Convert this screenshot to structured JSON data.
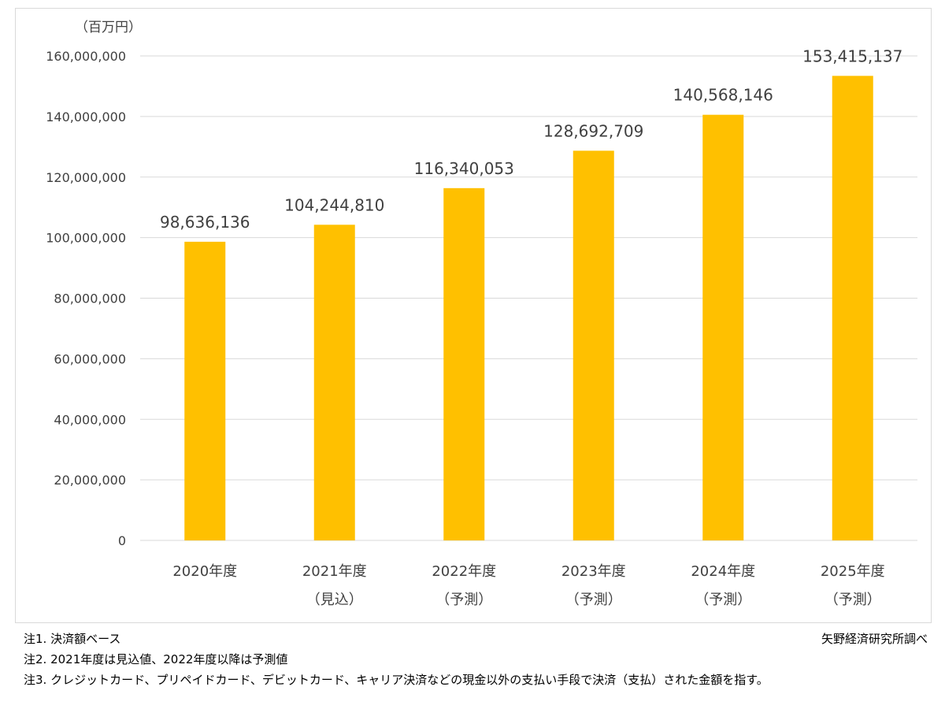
{
  "chart_data": {
    "type": "bar",
    "unit_label": "（百万円）",
    "categories": [
      {
        "line1": "2020年度",
        "line2": ""
      },
      {
        "line1": "2021年度",
        "line2": "（見込）"
      },
      {
        "line1": "2022年度",
        "line2": "（予測）"
      },
      {
        "line1": "2023年度",
        "line2": "（予測）"
      },
      {
        "line1": "2024年度",
        "line2": "（予測）"
      },
      {
        "line1": "2025年度",
        "line2": "（予測）"
      }
    ],
    "values": [
      98636136,
      104244810,
      116340053,
      128692709,
      140568146,
      153415137
    ],
    "data_labels": [
      "98,636,136",
      "104,244,810",
      "116,340,053",
      "128,692,709",
      "140,568,146",
      "153,415,137"
    ],
    "ylim": [
      0,
      160000000
    ],
    "yticks": [
      0,
      20000000,
      40000000,
      60000000,
      80000000,
      100000000,
      120000000,
      140000000,
      160000000
    ],
    "ytick_labels": [
      "0",
      "20,000,000",
      "40,000,000",
      "60,000,000",
      "80,000,000",
      "100,000,000",
      "120,000,000",
      "140,000,000",
      "160,000,000"
    ],
    "grid": true,
    "bar_color": "#FFC000",
    "gridline_color": "#d9d9d9",
    "text_color": "#404040"
  },
  "notes": [
    "注1.  決済額ベース",
    "注2.  2021年度は見込値、2022年度以降は予測値",
    "注3.  クレジットカード、プリペイドカード、デビットカード、キャリア決済などの現金以外の支払い手段で決済（支払）された金額を指す。"
  ],
  "source": "矢野経済研究所調べ"
}
